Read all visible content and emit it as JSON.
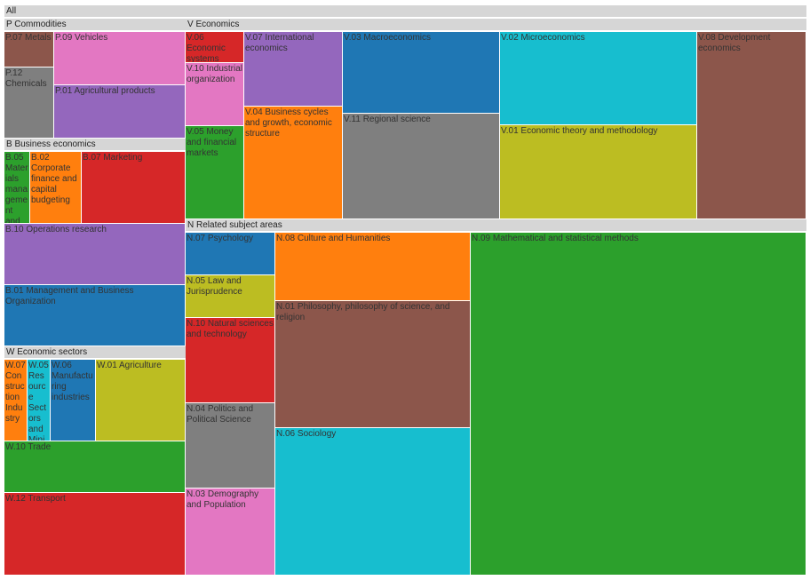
{
  "chart_data": {
    "type": "treemap",
    "root": "All",
    "groups": [
      {
        "name": "P Commodities",
        "children": [
          {
            "name": "P.07 Metals",
            "color": "#8c564b"
          },
          {
            "name": "P.09 Vehicles",
            "color": "#e377c2"
          },
          {
            "name": "P.12 Chemicals",
            "color": "#7f7f7f"
          },
          {
            "name": "P.01 Agricultural products",
            "color": "#9467bd"
          }
        ]
      },
      {
        "name": "B Business economics",
        "children": [
          {
            "name": "B.05 Materials management and logistics",
            "color": "#2ca02c"
          },
          {
            "name": "B.02 Corporate finance and capital budgeting",
            "color": "#ff7f0e"
          },
          {
            "name": "B.07 Marketing",
            "color": "#d62728"
          },
          {
            "name": "B.10 Operations research",
            "color": "#9467bd"
          },
          {
            "name": "B.01 Management and Business Organization",
            "color": "#1f77b4"
          }
        ]
      },
      {
        "name": "W Economic sectors",
        "children": [
          {
            "name": "W.07 Construction Industry",
            "color": "#ff7f0e"
          },
          {
            "name": "W.05 Resource Sectors and Mining",
            "color": "#17becf"
          },
          {
            "name": "W.06 Manufacturing industries",
            "color": "#1f77b4"
          },
          {
            "name": "W.01 Agriculture",
            "color": "#bcbd22"
          },
          {
            "name": "W.10 Trade",
            "color": "#2ca02c"
          },
          {
            "name": "W.12 Transport",
            "color": "#d62728"
          }
        ]
      },
      {
        "name": "V Economics",
        "children": [
          {
            "name": "V.06 Economic systems",
            "color": "#d62728"
          },
          {
            "name": "V.10 Industrial organization",
            "color": "#e377c2"
          },
          {
            "name": "V.05 Money and financial markets",
            "color": "#2ca02c"
          },
          {
            "name": "V.07 International economics",
            "color": "#9467bd"
          },
          {
            "name": "V.04 Business cycles and growth, economic structure",
            "color": "#ff7f0e"
          },
          {
            "name": "V.03 Macroeconomics",
            "color": "#1f77b4"
          },
          {
            "name": "V.11 Regional science",
            "color": "#7f7f7f"
          },
          {
            "name": "V.02 Microeconomics",
            "color": "#17becf"
          },
          {
            "name": "V.01 Economic theory and methodology",
            "color": "#bcbd22"
          },
          {
            "name": "V.08 Development economics",
            "color": "#8c564b"
          }
        ]
      },
      {
        "name": "N Related subject areas",
        "children": [
          {
            "name": "N.07 Psychology",
            "color": "#1f77b4"
          },
          {
            "name": "N.05 Law and Jurisprudence",
            "color": "#bcbd22"
          },
          {
            "name": "N.10 Natural sciences and technology",
            "color": "#d62728"
          },
          {
            "name": "N.04 Politics and Political Science",
            "color": "#7f7f7f"
          },
          {
            "name": "N.03 Demography and Population",
            "color": "#e377c2"
          },
          {
            "name": "N.08 Culture and Humanities",
            "color": "#ff7f0e"
          },
          {
            "name": "N.01 Philosophy, philosophy of science, and religion",
            "color": "#8c564b"
          },
          {
            "name": "N.06 Sociology",
            "color": "#17becf"
          },
          {
            "name": "N.09 Mathematical and statistical methods",
            "color": "#2ca02c"
          }
        ]
      }
    ]
  }
}
